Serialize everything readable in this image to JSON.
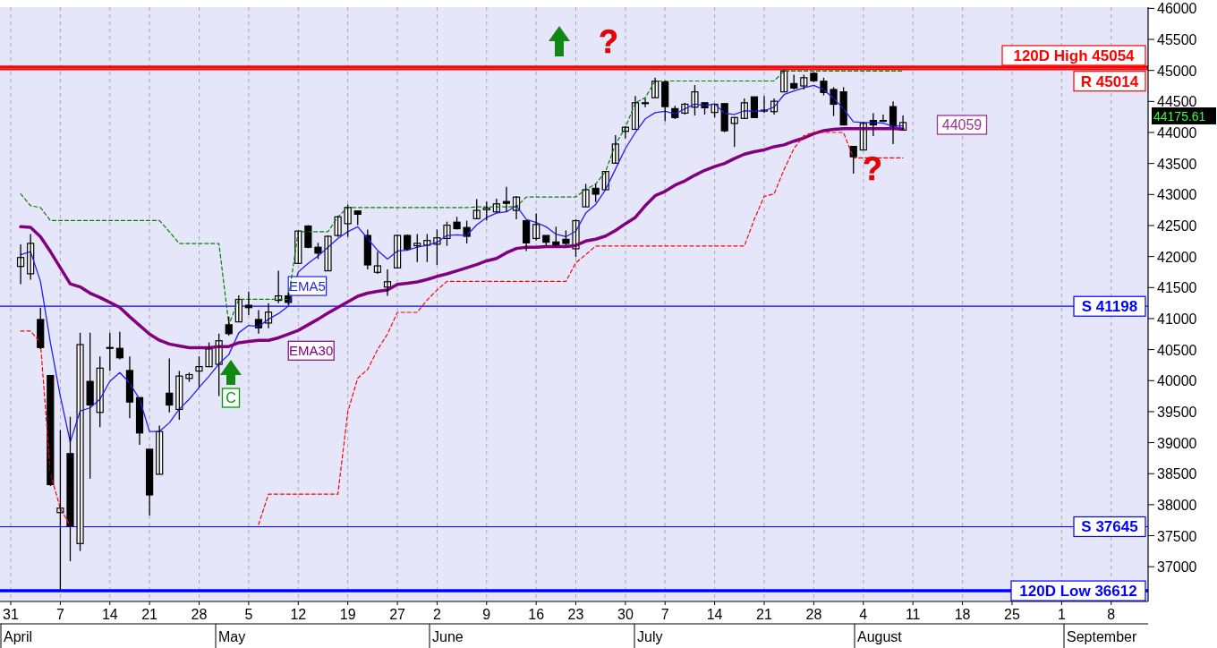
{
  "chart_data": {
    "type": "candlestick",
    "categories": [
      "31",
      null,
      null,
      null,
      null,
      "7",
      null,
      null,
      null,
      null,
      "14",
      null,
      null,
      null,
      "21",
      null,
      null,
      null,
      null,
      "28",
      null,
      null,
      null,
      null,
      "5",
      null,
      null,
      null,
      null,
      "12",
      null,
      null,
      null,
      null,
      "19",
      null,
      null,
      null,
      null,
      "27",
      null,
      null,
      null,
      "2",
      null,
      null,
      null,
      null,
      "9",
      null,
      null,
      null,
      null,
      "16",
      null,
      null,
      null,
      "23",
      null,
      null,
      null,
      null,
      "30",
      null,
      null,
      null,
      "7",
      null,
      null,
      null,
      null,
      "14",
      null,
      null,
      null,
      null,
      "21",
      null,
      null,
      null,
      null,
      "28",
      null,
      null,
      null,
      null,
      "4",
      null,
      null,
      null,
      null,
      "11",
      null,
      null,
      null,
      null,
      "18",
      null,
      null,
      null,
      null,
      "25",
      null,
      null,
      null,
      null,
      "1",
      null,
      null,
      null,
      null,
      "8",
      null,
      null,
      null
    ],
    "ohlc": [
      null,
      [
        41841,
        42197,
        41556,
        41984
      ],
      [
        41722,
        42364,
        41627,
        42212
      ],
      [
        40985,
        41175,
        40510,
        40534
      ],
      [
        40082,
        40082,
        38300,
        38324
      ],
      [
        37872,
        39203,
        36612,
        37944
      ],
      [
        38823,
        39417,
        37088,
        37658
      ],
      [
        37373,
        40772,
        37254,
        40581
      ],
      [
        39987,
        40772,
        38419,
        39607
      ],
      [
        39488,
        40391,
        39251,
        40201
      ],
      [
        40534,
        40772,
        40154,
        40524
      ],
      [
        40520,
        40786,
        40344,
        40368
      ],
      [
        40163,
        40391,
        39393,
        39655
      ],
      [
        39726,
        39726,
        38965,
        39156
      ],
      [
        38894,
        38894,
        37825,
        38157
      ],
      [
        38490,
        39274,
        38490,
        39179
      ],
      [
        39797,
        40358,
        39488,
        39607
      ],
      [
        39536,
        40154,
        39369,
        40073
      ],
      [
        40035,
        40130,
        39980,
        40097
      ],
      [
        40154,
        40391,
        39892,
        40225
      ],
      [
        40225,
        40615,
        40225,
        40510
      ],
      [
        40263,
        40757,
        39750,
        40643
      ],
      [
        40900,
        41033,
        40724,
        40757
      ],
      [
        40947,
        41375,
        40947,
        41309
      ],
      [
        41214,
        41437,
        41057,
        41176
      ],
      [
        40985,
        41138,
        40757,
        40852
      ],
      [
        40928,
        41247,
        40843,
        41104
      ],
      [
        41294,
        41770,
        41247,
        41366
      ],
      [
        41366,
        41413,
        41223,
        41261
      ],
      [
        41889,
        42421,
        41889,
        42411
      ],
      [
        42492,
        42506,
        42136,
        42150
      ],
      [
        42150,
        42221,
        41960,
        42055
      ],
      [
        41770,
        42340,
        41770,
        42326
      ],
      [
        42340,
        42659,
        42316,
        42640
      ],
      [
        42530,
        42839,
        42316,
        42792
      ],
      [
        42735,
        42744,
        42506,
        42682
      ],
      [
        42340,
        42435,
        41794,
        41865
      ],
      [
        41746,
        42079,
        41722,
        41850
      ],
      [
        41508,
        41793,
        41366,
        41594
      ],
      [
        41817,
        42354,
        41817,
        42340
      ],
      [
        42340,
        42354,
        42098,
        42117
      ],
      [
        42174,
        42364,
        41912,
        42212
      ],
      [
        42183,
        42364,
        41912,
        42259
      ],
      [
        42198,
        42435,
        41865,
        42302
      ],
      [
        42292,
        42563,
        42174,
        42506
      ],
      [
        42554,
        42639,
        42435,
        42449
      ],
      [
        42468,
        42578,
        42212,
        42326
      ],
      [
        42611,
        42925,
        42601,
        42744
      ],
      [
        42754,
        42887,
        42578,
        42782
      ],
      [
        42720,
        42934,
        42706,
        42849
      ],
      [
        42887,
        43124,
        42720,
        42858
      ],
      [
        42744,
        42972,
        42601,
        42958
      ],
      [
        42578,
        42578,
        42088,
        42221
      ],
      [
        42292,
        42696,
        42259,
        42516
      ],
      [
        42340,
        42340,
        42164,
        42231
      ],
      [
        42235,
        42483,
        42164,
        42188
      ],
      [
        42278,
        42421,
        42183,
        42212
      ],
      [
        42126,
        42601,
        41993,
        42578
      ],
      [
        42801,
        43172,
        42801,
        43077
      ],
      [
        43100,
        43172,
        42877,
        43005
      ],
      [
        43077,
        43380,
        43077,
        43371
      ],
      [
        43505,
        43956,
        43495,
        43813
      ],
      [
        44018,
        44100,
        43908,
        44084
      ],
      [
        44051,
        44588,
        44051,
        44479
      ],
      [
        44479,
        44550,
        44408,
        44465
      ],
      [
        44560,
        44883,
        44560,
        44826
      ],
      [
        44812,
        44830,
        44179,
        44417
      ],
      [
        44384,
        44431,
        44218,
        44241
      ],
      [
        44312,
        44479,
        44289,
        44455
      ],
      [
        44408,
        44764,
        44274,
        44655
      ],
      [
        44479,
        44479,
        44289,
        44398
      ],
      [
        44322,
        44465,
        44241,
        44455
      ],
      [
        44465,
        44465,
        44004,
        44027
      ],
      [
        44146,
        44251,
        43766,
        44241
      ],
      [
        44227,
        44550,
        44218,
        44479
      ],
      [
        44574,
        44574,
        44241,
        44241
      ],
      [
        44360,
        44588,
        44313,
        44350
      ],
      [
        44336,
        44550,
        44289,
        44503
      ],
      [
        44655,
        45002,
        44655,
        44992
      ],
      [
        44788,
        44930,
        44693,
        44716
      ],
      [
        44750,
        44930,
        44693,
        44883
      ],
      [
        44954,
        44968,
        44812,
        44835
      ],
      [
        44826,
        44883,
        44598,
        44645
      ],
      [
        44693,
        44731,
        44265,
        44455
      ],
      [
        44655,
        44731,
        44113,
        44122
      ],
      [
        43775,
        43775,
        43338,
        43609
      ],
      [
        43718,
        44170,
        43718,
        44146
      ],
      [
        44194,
        44312,
        43942,
        44122
      ],
      [
        44185,
        44289,
        44170,
        44194
      ],
      [
        44417,
        44503,
        43814,
        44099
      ],
      [
        44037,
        44274,
        44037,
        44160
      ],
      null,
      null,
      null,
      null,
      null,
      null,
      null,
      null,
      null,
      null,
      null,
      null,
      null,
      null,
      null,
      null,
      null,
      null,
      null,
      null,
      null,
      null,
      null,
      null
    ],
    "series": [
      {
        "type": "line",
        "name": "EMA5",
        "color": "#1f1fff",
        "line_style": "solid",
        "values": [
          null,
          42030,
          42080,
          41600,
          40610,
          39750,
          39010,
          39510,
          39560,
          39700,
          39990,
          40130,
          39960,
          39700,
          39180,
          39180,
          39320,
          39540,
          39700,
          39890,
          40070,
          40270,
          40420,
          40770,
          40890,
          40870,
          40990,
          41080,
          41200,
          41750,
          41890,
          42010,
          42150,
          42290,
          42400,
          42480,
          42290,
          42100,
          41960,
          42090,
          42100,
          42150,
          42180,
          42230,
          42340,
          42350,
          42340,
          42510,
          42630,
          42700,
          42720,
          42820,
          42600,
          42550,
          42480,
          42360,
          42320,
          42410,
          42700,
          42840,
          43080,
          43410,
          43740,
          44000,
          44220,
          44320,
          44340,
          44300,
          44380,
          44460,
          44430,
          44460,
          44310,
          44290,
          44350,
          44340,
          44350,
          44410,
          44610,
          44670,
          44720,
          44760,
          44690,
          44550,
          44380,
          44170,
          44160,
          44160,
          44150,
          44100,
          44110,
          null,
          null,
          null,
          null,
          null,
          null,
          null,
          null,
          null,
          null,
          null,
          null,
          null,
          null,
          null,
          null,
          null,
          null,
          null,
          null,
          null,
          null,
          null,
          null
        ]
      },
      {
        "type": "line",
        "name": "EMA30",
        "color": "#800080",
        "line_style": "solid",
        "values": [
          null,
          42480,
          42470,
          42320,
          42080,
          41820,
          41560,
          41510,
          41410,
          41340,
          41260,
          41180,
          41030,
          40890,
          40750,
          40650,
          40590,
          40560,
          40530,
          40530,
          40530,
          40550,
          40550,
          40610,
          40630,
          40650,
          40650,
          40690,
          40750,
          40810,
          40900,
          40990,
          41090,
          41180,
          41270,
          41360,
          41410,
          41440,
          41460,
          41550,
          41570,
          41590,
          41630,
          41680,
          41720,
          41770,
          41820,
          41870,
          41930,
          41970,
          42060,
          42130,
          42150,
          42150,
          42160,
          42160,
          42160,
          42180,
          42250,
          42280,
          42330,
          42420,
          42530,
          42630,
          42820,
          42980,
          43050,
          43150,
          43220,
          43310,
          43390,
          43450,
          43500,
          43580,
          43650,
          43690,
          43720,
          43770,
          43800,
          43860,
          43910,
          43980,
          44030,
          44050,
          44060,
          44060,
          44060,
          44060,
          44060,
          44060,
          44059,
          null,
          null,
          null,
          null,
          null,
          null,
          null,
          null,
          null,
          null,
          null,
          null,
          null,
          null,
          null,
          null,
          null,
          null,
          null,
          null,
          null,
          null,
          null,
          null
        ]
      },
      {
        "type": "line",
        "color": "#008000",
        "line_style": "dashed",
        "values": [
          null,
          43010,
          42820,
          42790,
          42580,
          42580,
          42580,
          42580,
          42580,
          42580,
          42580,
          42580,
          42580,
          42580,
          42580,
          42580,
          42400,
          42210,
          42210,
          42210,
          42210,
          42210,
          40900,
          41310,
          41310,
          41310,
          41310,
          41310,
          41310,
          42400,
          42400,
          42400,
          42400,
          42640,
          42790,
          42790,
          42790,
          42790,
          42790,
          42790,
          42790,
          42790,
          42790,
          42790,
          42790,
          42790,
          42790,
          42800,
          42800,
          42800,
          42800,
          42800,
          42960,
          42960,
          42960,
          42960,
          42960,
          42960,
          43080,
          43170,
          43370,
          43810,
          44080,
          44480,
          44560,
          44830,
          44830,
          44830,
          44830,
          44830,
          44830,
          44830,
          44830,
          44830,
          44830,
          44830,
          44830,
          44830,
          44990,
          44990,
          44990,
          44990,
          44990,
          44990,
          44990,
          44990,
          44990,
          44990,
          44990,
          44990,
          44990,
          null,
          null,
          null,
          null,
          null,
          null,
          null,
          null,
          null,
          null,
          null,
          null,
          null,
          null,
          null,
          null,
          null,
          null,
          null,
          null,
          null,
          null,
          null,
          null
        ]
      },
      {
        "type": "line",
        "color": "#ff0000",
        "line_style": "dashed",
        "values": [
          null,
          40800,
          40800,
          40610,
          38500,
          37940,
          37660,
          null,
          null,
          null,
          null,
          null,
          null,
          null,
          null,
          null,
          null,
          null,
          null,
          null,
          null,
          null,
          null,
          null,
          null,
          37680,
          38170,
          38170,
          38170,
          38170,
          38170,
          38170,
          38170,
          38170,
          39500,
          40040,
          40180,
          40500,
          40750,
          41100,
          41100,
          41100,
          41300,
          41460,
          41600,
          41600,
          41600,
          41600,
          41600,
          41600,
          41600,
          41600,
          41600,
          41600,
          41600,
          41600,
          41600,
          41900,
          42030,
          42170,
          42170,
          42170,
          42170,
          42170,
          42170,
          42170,
          42170,
          42170,
          42170,
          42170,
          42170,
          42170,
          42170,
          42170,
          42170,
          42600,
          42970,
          43010,
          43400,
          43740,
          43950,
          44000,
          44000,
          44000,
          44000,
          43590,
          43590,
          43590,
          43590,
          43590,
          43590,
          null,
          null,
          null,
          null,
          null,
          null,
          null,
          null,
          null,
          null,
          null,
          null,
          null,
          null,
          null,
          null,
          null,
          null,
          null,
          null,
          null,
          null,
          null,
          null
        ]
      }
    ],
    "ylim": [
      36440,
      46020
    ],
    "yticks": [
      37000,
      37500,
      38000,
      38500,
      39000,
      39500,
      40000,
      40500,
      41000,
      41500,
      42000,
      42500,
      43000,
      43500,
      44000,
      44500,
      45000,
      45500,
      46000
    ],
    "grid": "x",
    "ref_lines": [
      {
        "axis": "y",
        "value": 45054,
        "label": "120D High 45054",
        "color": "#ff0000"
      },
      {
        "axis": "y",
        "value": 45014,
        "label": "R 45014",
        "color": "#ff0000"
      },
      {
        "axis": "y",
        "value": 41198,
        "label": "S 41198",
        "color": "#0000ff"
      },
      {
        "axis": "y",
        "value": 37645,
        "label": "S 37645",
        "color": "#0000ff"
      },
      {
        "axis": "y",
        "value": 36612,
        "label": "120D Low 36612",
        "color": "#0000ff"
      }
    ],
    "annotations": [
      "?",
      "C",
      "?",
      "44059",
      "44175.61",
      "April",
      "May",
      "June",
      "July",
      "August",
      "September"
    ]
  }
}
